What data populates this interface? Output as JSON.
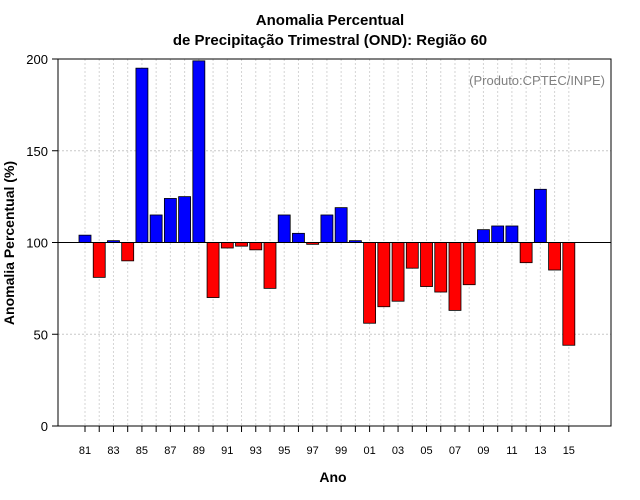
{
  "chart_data": {
    "type": "bar",
    "title": "Anomalia Percentual",
    "subtitle": "de Precipitação Trimestral (OND): Região 60",
    "xlabel": "Ano",
    "ylabel": "Anomalia Percentual (%)",
    "annotation": "(Produto:CPTEC/INPE)",
    "baseline": 100,
    "ylim": [
      0,
      200
    ],
    "yticks": [
      0,
      50,
      100,
      150,
      200
    ],
    "grid": true,
    "categories": [
      "81",
      "82",
      "83",
      "84",
      "85",
      "86",
      "87",
      "88",
      "89",
      "90",
      "91",
      "92",
      "93",
      "94",
      "95",
      "96",
      "97",
      "98",
      "99",
      "00",
      "01",
      "02",
      "03",
      "04",
      "05",
      "06",
      "07",
      "08",
      "09",
      "10",
      "11",
      "12",
      "13",
      "14",
      "15"
    ],
    "xtick_labels": [
      "81",
      "83",
      "85",
      "87",
      "89",
      "91",
      "93",
      "95",
      "97",
      "99",
      "01",
      "03",
      "05",
      "07",
      "09",
      "11",
      "13",
      "15"
    ],
    "values": [
      104,
      81,
      101,
      90,
      195,
      115,
      124,
      125,
      199,
      70,
      97,
      98,
      96,
      75,
      115,
      105,
      99,
      115,
      119,
      101,
      56,
      65,
      68,
      86,
      76,
      73,
      63,
      77,
      107,
      109,
      109,
      89,
      129,
      85,
      44
    ],
    "colors": {
      "above": "#0000ff",
      "below": "#ff0000"
    }
  }
}
